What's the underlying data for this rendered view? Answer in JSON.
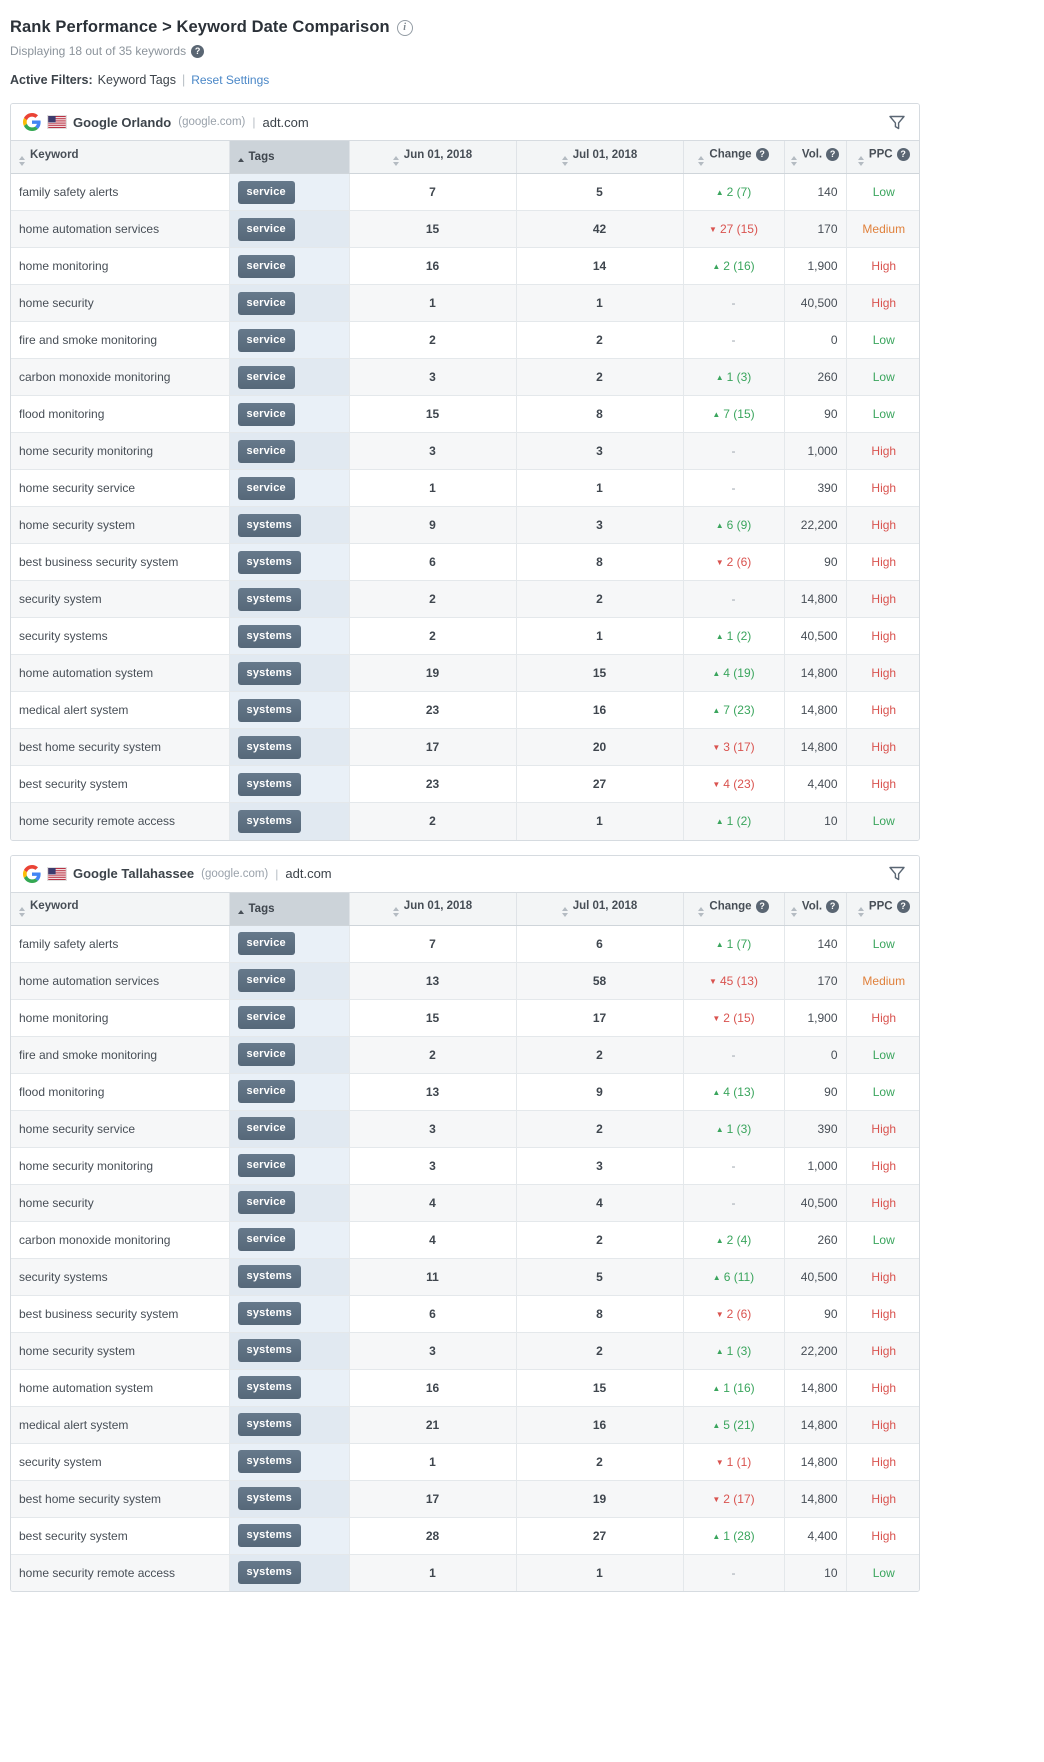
{
  "page": {
    "title": "Rank Performance > Keyword Date Comparison",
    "subtitle": "Displaying 18 out of 35 keywords",
    "active_filters_label": "Active Filters:",
    "active_filters_value": "Keyword Tags",
    "pipe": "|",
    "reset_link": "Reset Settings"
  },
  "columns": {
    "keyword": "Keyword",
    "tags": "Tags",
    "date1": "Jun 01, 2018",
    "date2": "Jul 01, 2018",
    "change": "Change",
    "vol": "Vol.",
    "ppc": "PPC"
  },
  "colors": {
    "green": "#3aa55d",
    "red": "#d9534f",
    "orange": "#e0813c",
    "link": "#4a87c7",
    "chip": "#5d7081",
    "tagcol_odd": "#e9f0f7",
    "tagcol_even": "#e1e9f1"
  },
  "tables": [
    {
      "engine": "Google Orlando",
      "engine_domain": "(google.com)",
      "site": "adt.com",
      "rows": [
        {
          "keyword": "family safety alerts",
          "tag": "service",
          "date1": "7",
          "date2": "5",
          "change_dir": "up",
          "change": "2 (7)",
          "vol": "140",
          "ppc": "Low"
        },
        {
          "keyword": "home automation services",
          "tag": "service",
          "date1": "15",
          "date2": "42",
          "change_dir": "down",
          "change": "27 (15)",
          "vol": "170",
          "ppc": "Medium"
        },
        {
          "keyword": "home monitoring",
          "tag": "service",
          "date1": "16",
          "date2": "14",
          "change_dir": "up",
          "change": "2 (16)",
          "vol": "1,900",
          "ppc": "High"
        },
        {
          "keyword": "home security",
          "tag": "service",
          "date1": "1",
          "date2": "1",
          "change_dir": "none",
          "change": "-",
          "vol": "40,500",
          "ppc": "High"
        },
        {
          "keyword": "fire and smoke monitoring",
          "tag": "service",
          "date1": "2",
          "date2": "2",
          "change_dir": "none",
          "change": "-",
          "vol": "0",
          "ppc": "Low"
        },
        {
          "keyword": "carbon monoxide monitoring",
          "tag": "service",
          "date1": "3",
          "date2": "2",
          "change_dir": "up",
          "change": "1 (3)",
          "vol": "260",
          "ppc": "Low"
        },
        {
          "keyword": "flood monitoring",
          "tag": "service",
          "date1": "15",
          "date2": "8",
          "change_dir": "up",
          "change": "7 (15)",
          "vol": "90",
          "ppc": "Low"
        },
        {
          "keyword": "home security monitoring",
          "tag": "service",
          "date1": "3",
          "date2": "3",
          "change_dir": "none",
          "change": "-",
          "vol": "1,000",
          "ppc": "High"
        },
        {
          "keyword": "home security service",
          "tag": "service",
          "date1": "1",
          "date2": "1",
          "change_dir": "none",
          "change": "-",
          "vol": "390",
          "ppc": "High"
        },
        {
          "keyword": "home security system",
          "tag": "systems",
          "date1": "9",
          "date2": "3",
          "change_dir": "up",
          "change": "6 (9)",
          "vol": "22,200",
          "ppc": "High"
        },
        {
          "keyword": "best business security system",
          "tag": "systems",
          "date1": "6",
          "date2": "8",
          "change_dir": "down",
          "change": "2 (6)",
          "vol": "90",
          "ppc": "High"
        },
        {
          "keyword": "security system",
          "tag": "systems",
          "date1": "2",
          "date2": "2",
          "change_dir": "none",
          "change": "-",
          "vol": "14,800",
          "ppc": "High"
        },
        {
          "keyword": "security systems",
          "tag": "systems",
          "date1": "2",
          "date2": "1",
          "change_dir": "up",
          "change": "1 (2)",
          "vol": "40,500",
          "ppc": "High"
        },
        {
          "keyword": "home automation system",
          "tag": "systems",
          "date1": "19",
          "date2": "15",
          "change_dir": "up",
          "change": "4 (19)",
          "vol": "14,800",
          "ppc": "High"
        },
        {
          "keyword": "medical alert system",
          "tag": "systems",
          "date1": "23",
          "date2": "16",
          "change_dir": "up",
          "change": "7 (23)",
          "vol": "14,800",
          "ppc": "High"
        },
        {
          "keyword": "best home security system",
          "tag": "systems",
          "date1": "17",
          "date2": "20",
          "change_dir": "down",
          "change": "3 (17)",
          "vol": "14,800",
          "ppc": "High"
        },
        {
          "keyword": "best security system",
          "tag": "systems",
          "date1": "23",
          "date2": "27",
          "change_dir": "down",
          "change": "4 (23)",
          "vol": "4,400",
          "ppc": "High"
        },
        {
          "keyword": "home security remote access",
          "tag": "systems",
          "date1": "2",
          "date2": "1",
          "change_dir": "up",
          "change": "1 (2)",
          "vol": "10",
          "ppc": "Low"
        }
      ]
    },
    {
      "engine": "Google Tallahassee",
      "engine_domain": "(google.com)",
      "site": "adt.com",
      "rows": [
        {
          "keyword": "family safety alerts",
          "tag": "service",
          "date1": "7",
          "date2": "6",
          "change_dir": "up",
          "change": "1 (7)",
          "vol": "140",
          "ppc": "Low"
        },
        {
          "keyword": "home automation services",
          "tag": "service",
          "date1": "13",
          "date2": "58",
          "change_dir": "down",
          "change": "45 (13)",
          "vol": "170",
          "ppc": "Medium"
        },
        {
          "keyword": "home monitoring",
          "tag": "service",
          "date1": "15",
          "date2": "17",
          "change_dir": "down",
          "change": "2 (15)",
          "vol": "1,900",
          "ppc": "High"
        },
        {
          "keyword": "fire and smoke monitoring",
          "tag": "service",
          "date1": "2",
          "date2": "2",
          "change_dir": "none",
          "change": "-",
          "vol": "0",
          "ppc": "Low"
        },
        {
          "keyword": "flood monitoring",
          "tag": "service",
          "date1": "13",
          "date2": "9",
          "change_dir": "up",
          "change": "4 (13)",
          "vol": "90",
          "ppc": "Low"
        },
        {
          "keyword": "home security service",
          "tag": "service",
          "date1": "3",
          "date2": "2",
          "change_dir": "up",
          "change": "1 (3)",
          "vol": "390",
          "ppc": "High"
        },
        {
          "keyword": "home security monitoring",
          "tag": "service",
          "date1": "3",
          "date2": "3",
          "change_dir": "none",
          "change": "-",
          "vol": "1,000",
          "ppc": "High"
        },
        {
          "keyword": "home security",
          "tag": "service",
          "date1": "4",
          "date2": "4",
          "change_dir": "none",
          "change": "-",
          "vol": "40,500",
          "ppc": "High"
        },
        {
          "keyword": "carbon monoxide monitoring",
          "tag": "service",
          "date1": "4",
          "date2": "2",
          "change_dir": "up",
          "change": "2 (4)",
          "vol": "260",
          "ppc": "Low"
        },
        {
          "keyword": "security systems",
          "tag": "systems",
          "date1": "11",
          "date2": "5",
          "change_dir": "up",
          "change": "6 (11)",
          "vol": "40,500",
          "ppc": "High"
        },
        {
          "keyword": "best business security system",
          "tag": "systems",
          "date1": "6",
          "date2": "8",
          "change_dir": "down",
          "change": "2 (6)",
          "vol": "90",
          "ppc": "High"
        },
        {
          "keyword": "home security system",
          "tag": "systems",
          "date1": "3",
          "date2": "2",
          "change_dir": "up",
          "change": "1 (3)",
          "vol": "22,200",
          "ppc": "High"
        },
        {
          "keyword": "home automation system",
          "tag": "systems",
          "date1": "16",
          "date2": "15",
          "change_dir": "up",
          "change": "1 (16)",
          "vol": "14,800",
          "ppc": "High"
        },
        {
          "keyword": "medical alert system",
          "tag": "systems",
          "date1": "21",
          "date2": "16",
          "change_dir": "up",
          "change": "5 (21)",
          "vol": "14,800",
          "ppc": "High"
        },
        {
          "keyword": "security system",
          "tag": "systems",
          "date1": "1",
          "date2": "2",
          "change_dir": "down",
          "change": "1 (1)",
          "vol": "14,800",
          "ppc": "High"
        },
        {
          "keyword": "best home security system",
          "tag": "systems",
          "date1": "17",
          "date2": "19",
          "change_dir": "down",
          "change": "2 (17)",
          "vol": "14,800",
          "ppc": "High"
        },
        {
          "keyword": "best security system",
          "tag": "systems",
          "date1": "28",
          "date2": "27",
          "change_dir": "up",
          "change": "1 (28)",
          "vol": "4,400",
          "ppc": "High"
        },
        {
          "keyword": "home security remote access",
          "tag": "systems",
          "date1": "1",
          "date2": "1",
          "change_dir": "none",
          "change": "-",
          "vol": "10",
          "ppc": "Low"
        }
      ]
    }
  ]
}
